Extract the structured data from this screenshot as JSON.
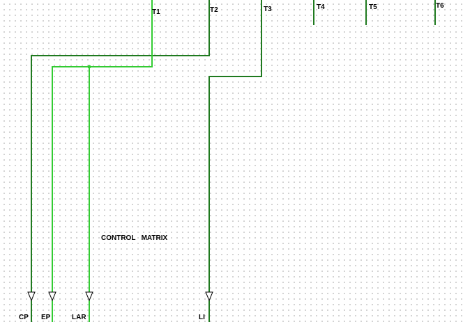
{
  "title": "CONTROL   MATRIX",
  "colors": {
    "dark_wire": "#1f7a1f",
    "light_wire": "#33cc33",
    "grid_dot": "#9a9a9a",
    "background": "#ffffff"
  },
  "timing_inputs": [
    {
      "id": "t1",
      "label": "T1"
    },
    {
      "id": "t2",
      "label": "T2"
    },
    {
      "id": "t3",
      "label": "T3"
    },
    {
      "id": "t4",
      "label": "T4"
    },
    {
      "id": "t5",
      "label": "T5"
    },
    {
      "id": "t6",
      "label": "T6"
    }
  ],
  "control_outputs": [
    {
      "id": "cp",
      "label": "CP",
      "driven_by": "T2"
    },
    {
      "id": "ep",
      "label": "EP",
      "driven_by": "T1"
    },
    {
      "id": "lar",
      "label": "LAR",
      "driven_by": "T1"
    },
    {
      "id": "li",
      "label": "LI",
      "driven_by": "T3"
    }
  ]
}
